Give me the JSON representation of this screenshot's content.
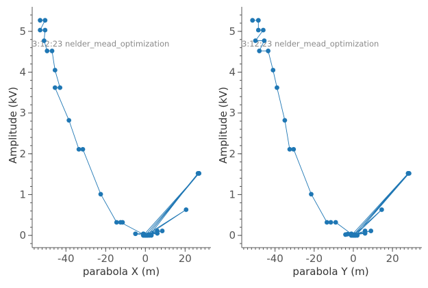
{
  "chart_data": [
    {
      "type": "line",
      "title": "",
      "xlabel": "parabola X (m)",
      "ylabel": "Amplitude (kV)",
      "annotation": "3:12:23 nelder_mead_optimization",
      "xlim": [
        -57,
        33
      ],
      "ylim": [
        -0.3,
        5.6
      ],
      "xticks": [
        -40,
        -20,
        0,
        20
      ],
      "yticks": [
        0,
        1,
        2,
        3,
        4,
        5
      ],
      "xtick_labels": [
        "-40",
        "-20",
        "0",
        "20"
      ],
      "ytick_labels": [
        "0",
        "1",
        "2",
        "3",
        "4",
        "5"
      ],
      "color": "#1f77b4",
      "series": [
        {
          "x": [
            -53,
            -50.5,
            -53,
            -50.5,
            -51,
            -49.5,
            -47,
            -45.5,
            -43,
            -45.5,
            -38.5,
            -33.5,
            -31.5,
            -22.5,
            -14.5,
            -11.5,
            -12.5,
            0,
            -1,
            1,
            27,
            0,
            3,
            -1,
            2,
            26.5,
            1,
            20.5,
            0,
            8.5,
            -1,
            6,
            0,
            1,
            27,
            -1,
            1,
            6,
            -5,
            0,
            2
          ],
          "y": [
            5.27,
            5.27,
            5.03,
            5.03,
            4.77,
            4.52,
            4.52,
            4.05,
            3.62,
            3.62,
            2.82,
            2.11,
            2.11,
            1.01,
            0.32,
            0.32,
            0.32,
            0.0,
            0.04,
            0.0,
            1.52,
            0.0,
            0.0,
            0.02,
            0.0,
            1.52,
            0.0,
            0.63,
            0.0,
            0.11,
            0.0,
            0.11,
            0.0,
            0.0,
            1.52,
            0.0,
            0.01,
            0.05,
            0.04,
            0.0,
            0.02
          ]
        }
      ]
    },
    {
      "type": "line",
      "title": "",
      "xlabel": "parabola Y (m)",
      "ylabel": "Amplitude (kV)",
      "annotation": "3:12:23 nelder_mead_optimization",
      "xlim": [
        -57,
        35
      ],
      "ylim": [
        -0.3,
        5.6
      ],
      "xticks": [
        -40,
        -20,
        0,
        20
      ],
      "yticks": [
        0,
        1,
        2,
        3,
        4,
        5
      ],
      "xtick_labels": [
        "-40",
        "-20",
        "0",
        "20"
      ],
      "ytick_labels": [
        "0",
        "1",
        "2",
        "3",
        "4",
        "5"
      ],
      "color": "#1f77b4",
      "series": [
        {
          "x": [
            -51.5,
            -48.5,
            -48.5,
            -46,
            -50,
            -45.5,
            -48,
            -43.5,
            -41,
            -39,
            -35,
            -32.5,
            -30.5,
            -21.5,
            -13.5,
            -11.5,
            -9,
            0,
            -4,
            1,
            28,
            0,
            2,
            -1,
            1,
            28.5,
            0,
            14.5,
            1,
            9,
            -1,
            6,
            0,
            1,
            28,
            -1,
            0,
            6,
            -3,
            0,
            1
          ],
          "y": [
            5.27,
            5.27,
            5.03,
            5.03,
            4.77,
            4.77,
            4.52,
            4.52,
            4.05,
            3.62,
            2.82,
            2.11,
            2.11,
            1.01,
            0.32,
            0.32,
            0.32,
            0.0,
            0.02,
            0.0,
            1.52,
            0.0,
            0.0,
            0.04,
            0.0,
            1.52,
            0.0,
            0.63,
            0.0,
            0.11,
            0.0,
            0.11,
            0.0,
            0.0,
            1.52,
            0.0,
            0.01,
            0.05,
            0.03,
            0.0,
            0.02
          ]
        }
      ]
    }
  ]
}
